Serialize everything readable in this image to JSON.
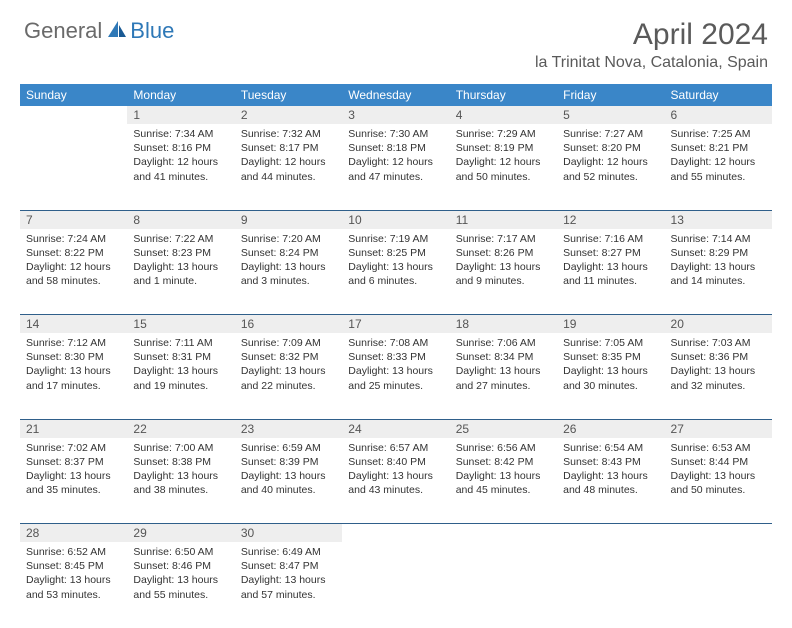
{
  "brand": {
    "part1": "General",
    "part2": "Blue"
  },
  "title": "April 2024",
  "location": "la Trinitat Nova, Catalonia, Spain",
  "colors": {
    "header_bg": "#3a86c8",
    "header_text": "#ffffff",
    "daynum_bg": "#eeeeee",
    "row_border": "#2f5f8a",
    "logo_gray": "#6a6a6a",
    "logo_blue": "#2e78b7"
  },
  "day_headers": [
    "Sunday",
    "Monday",
    "Tuesday",
    "Wednesday",
    "Thursday",
    "Friday",
    "Saturday"
  ],
  "weeks": [
    {
      "nums": [
        "",
        "1",
        "2",
        "3",
        "4",
        "5",
        "6"
      ],
      "cells": [
        null,
        {
          "sr": "Sunrise: 7:34 AM",
          "ss": "Sunset: 8:16 PM",
          "d1": "Daylight: 12 hours",
          "d2": "and 41 minutes."
        },
        {
          "sr": "Sunrise: 7:32 AM",
          "ss": "Sunset: 8:17 PM",
          "d1": "Daylight: 12 hours",
          "d2": "and 44 minutes."
        },
        {
          "sr": "Sunrise: 7:30 AM",
          "ss": "Sunset: 8:18 PM",
          "d1": "Daylight: 12 hours",
          "d2": "and 47 minutes."
        },
        {
          "sr": "Sunrise: 7:29 AM",
          "ss": "Sunset: 8:19 PM",
          "d1": "Daylight: 12 hours",
          "d2": "and 50 minutes."
        },
        {
          "sr": "Sunrise: 7:27 AM",
          "ss": "Sunset: 8:20 PM",
          "d1": "Daylight: 12 hours",
          "d2": "and 52 minutes."
        },
        {
          "sr": "Sunrise: 7:25 AM",
          "ss": "Sunset: 8:21 PM",
          "d1": "Daylight: 12 hours",
          "d2": "and 55 minutes."
        }
      ]
    },
    {
      "nums": [
        "7",
        "8",
        "9",
        "10",
        "11",
        "12",
        "13"
      ],
      "cells": [
        {
          "sr": "Sunrise: 7:24 AM",
          "ss": "Sunset: 8:22 PM",
          "d1": "Daylight: 12 hours",
          "d2": "and 58 minutes."
        },
        {
          "sr": "Sunrise: 7:22 AM",
          "ss": "Sunset: 8:23 PM",
          "d1": "Daylight: 13 hours",
          "d2": "and 1 minute."
        },
        {
          "sr": "Sunrise: 7:20 AM",
          "ss": "Sunset: 8:24 PM",
          "d1": "Daylight: 13 hours",
          "d2": "and 3 minutes."
        },
        {
          "sr": "Sunrise: 7:19 AM",
          "ss": "Sunset: 8:25 PM",
          "d1": "Daylight: 13 hours",
          "d2": "and 6 minutes."
        },
        {
          "sr": "Sunrise: 7:17 AM",
          "ss": "Sunset: 8:26 PM",
          "d1": "Daylight: 13 hours",
          "d2": "and 9 minutes."
        },
        {
          "sr": "Sunrise: 7:16 AM",
          "ss": "Sunset: 8:27 PM",
          "d1": "Daylight: 13 hours",
          "d2": "and 11 minutes."
        },
        {
          "sr": "Sunrise: 7:14 AM",
          "ss": "Sunset: 8:29 PM",
          "d1": "Daylight: 13 hours",
          "d2": "and 14 minutes."
        }
      ]
    },
    {
      "nums": [
        "14",
        "15",
        "16",
        "17",
        "18",
        "19",
        "20"
      ],
      "cells": [
        {
          "sr": "Sunrise: 7:12 AM",
          "ss": "Sunset: 8:30 PM",
          "d1": "Daylight: 13 hours",
          "d2": "and 17 minutes."
        },
        {
          "sr": "Sunrise: 7:11 AM",
          "ss": "Sunset: 8:31 PM",
          "d1": "Daylight: 13 hours",
          "d2": "and 19 minutes."
        },
        {
          "sr": "Sunrise: 7:09 AM",
          "ss": "Sunset: 8:32 PM",
          "d1": "Daylight: 13 hours",
          "d2": "and 22 minutes."
        },
        {
          "sr": "Sunrise: 7:08 AM",
          "ss": "Sunset: 8:33 PM",
          "d1": "Daylight: 13 hours",
          "d2": "and 25 minutes."
        },
        {
          "sr": "Sunrise: 7:06 AM",
          "ss": "Sunset: 8:34 PM",
          "d1": "Daylight: 13 hours",
          "d2": "and 27 minutes."
        },
        {
          "sr": "Sunrise: 7:05 AM",
          "ss": "Sunset: 8:35 PM",
          "d1": "Daylight: 13 hours",
          "d2": "and 30 minutes."
        },
        {
          "sr": "Sunrise: 7:03 AM",
          "ss": "Sunset: 8:36 PM",
          "d1": "Daylight: 13 hours",
          "d2": "and 32 minutes."
        }
      ]
    },
    {
      "nums": [
        "21",
        "22",
        "23",
        "24",
        "25",
        "26",
        "27"
      ],
      "cells": [
        {
          "sr": "Sunrise: 7:02 AM",
          "ss": "Sunset: 8:37 PM",
          "d1": "Daylight: 13 hours",
          "d2": "and 35 minutes."
        },
        {
          "sr": "Sunrise: 7:00 AM",
          "ss": "Sunset: 8:38 PM",
          "d1": "Daylight: 13 hours",
          "d2": "and 38 minutes."
        },
        {
          "sr": "Sunrise: 6:59 AM",
          "ss": "Sunset: 8:39 PM",
          "d1": "Daylight: 13 hours",
          "d2": "and 40 minutes."
        },
        {
          "sr": "Sunrise: 6:57 AM",
          "ss": "Sunset: 8:40 PM",
          "d1": "Daylight: 13 hours",
          "d2": "and 43 minutes."
        },
        {
          "sr": "Sunrise: 6:56 AM",
          "ss": "Sunset: 8:42 PM",
          "d1": "Daylight: 13 hours",
          "d2": "and 45 minutes."
        },
        {
          "sr": "Sunrise: 6:54 AM",
          "ss": "Sunset: 8:43 PM",
          "d1": "Daylight: 13 hours",
          "d2": "and 48 minutes."
        },
        {
          "sr": "Sunrise: 6:53 AM",
          "ss": "Sunset: 8:44 PM",
          "d1": "Daylight: 13 hours",
          "d2": "and 50 minutes."
        }
      ]
    },
    {
      "nums": [
        "28",
        "29",
        "30",
        "",
        "",
        "",
        ""
      ],
      "cells": [
        {
          "sr": "Sunrise: 6:52 AM",
          "ss": "Sunset: 8:45 PM",
          "d1": "Daylight: 13 hours",
          "d2": "and 53 minutes."
        },
        {
          "sr": "Sunrise: 6:50 AM",
          "ss": "Sunset: 8:46 PM",
          "d1": "Daylight: 13 hours",
          "d2": "and 55 minutes."
        },
        {
          "sr": "Sunrise: 6:49 AM",
          "ss": "Sunset: 8:47 PM",
          "d1": "Daylight: 13 hours",
          "d2": "and 57 minutes."
        },
        null,
        null,
        null,
        null
      ]
    }
  ]
}
